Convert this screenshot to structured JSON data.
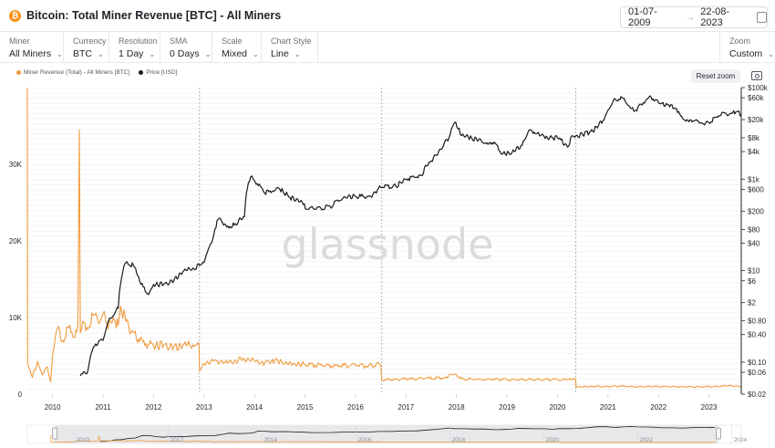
{
  "header": {
    "coin_symbol": "₿",
    "title": "Bitcoin: Total Miner Revenue [BTC] - All Miners",
    "date_from": "01-07-2009",
    "date_to": "22-08-2023",
    "arrow": "→"
  },
  "controls": [
    {
      "label": "Miner",
      "value": "All Miners"
    },
    {
      "label": "Currency",
      "value": "BTC"
    },
    {
      "label": "Resolution",
      "value": "1 Day"
    },
    {
      "label": "SMA",
      "value": "0 Days"
    },
    {
      "label": "Scale",
      "value": "Mixed"
    },
    {
      "label": "Chart Style",
      "value": "Line"
    }
  ],
  "zoom": {
    "label": "Zoom",
    "value": "Custom"
  },
  "toolbar": {
    "reset_zoom": "Reset zoom"
  },
  "watermark": "glassnode",
  "colors": {
    "revenue": "#f09a3e",
    "price": "#1a1a1a",
    "grid": "#eeeeee",
    "halving": "#9aa0a6"
  },
  "chart_data": {
    "type": "line",
    "title": "Bitcoin: Total Miner Revenue [BTC] - All Miners",
    "x_range": [
      2009.5,
      2023.64
    ],
    "x_ticks": [
      "2010",
      "2011",
      "2012",
      "2013",
      "2014",
      "2015",
      "2016",
      "2017",
      "2018",
      "2019",
      "2020",
      "2021",
      "2022",
      "2023"
    ],
    "halvings": [
      2012.91,
      2016.52,
      2020.36
    ],
    "grid": true,
    "legend_position": "top-left",
    "left_axis": {
      "scale": "linear",
      "range": [
        0,
        40000
      ],
      "ticks": [
        0,
        10000,
        20000,
        30000
      ],
      "tick_labels": [
        "0",
        "10K",
        "20K",
        "30K"
      ]
    },
    "right_axis": {
      "scale": "log",
      "range": [
        0.02,
        100000
      ],
      "ticks": [
        100000,
        60000,
        20000,
        8000,
        4000,
        1000,
        600,
        200,
        80,
        40,
        10,
        6,
        2,
        0.8,
        0.4,
        0.1,
        0.06,
        0.02
      ],
      "tick_labels": [
        "$100k",
        "$60k",
        "$20k",
        "$8k",
        "$4k",
        "$1k",
        "$600",
        "$200",
        "$80",
        "$40",
        "$10",
        "$6",
        "$2",
        "$0.80",
        "$0.40",
        "$0.10",
        "$0.06",
        "$0.02"
      ]
    },
    "series": [
      {
        "name": "Miner Revenue (Total) - All Miners [BTC]",
        "axis": "left",
        "points": [
          [
            2009.5,
            40000
          ],
          [
            2009.505,
            4000
          ],
          [
            2009.6,
            2200
          ],
          [
            2009.7,
            4300
          ],
          [
            2009.8,
            2500
          ],
          [
            2009.9,
            3500
          ],
          [
            2009.96,
            1600
          ],
          [
            2010.0,
            5200
          ],
          [
            2010.1,
            8500
          ],
          [
            2010.2,
            7000
          ],
          [
            2010.3,
            8800
          ],
          [
            2010.4,
            7500
          ],
          [
            2010.5,
            9000
          ],
          [
            2010.53,
            34500
          ],
          [
            2010.55,
            8000
          ],
          [
            2010.6,
            9500
          ],
          [
            2010.7,
            8500
          ],
          [
            2010.8,
            10300
          ],
          [
            2010.9,
            9500
          ],
          [
            2011.0,
            10500
          ],
          [
            2011.1,
            8500
          ],
          [
            2011.2,
            10000
          ],
          [
            2011.3,
            9000
          ],
          [
            2011.35,
            11500
          ],
          [
            2011.45,
            9500
          ],
          [
            2011.55,
            8000
          ],
          [
            2011.7,
            7200
          ],
          [
            2011.85,
            6600
          ],
          [
            2012.0,
            6300
          ],
          [
            2012.2,
            6400
          ],
          [
            2012.4,
            6100
          ],
          [
            2012.6,
            6500
          ],
          [
            2012.8,
            6200
          ],
          [
            2012.9,
            6400
          ],
          [
            2012.91,
            3000
          ],
          [
            2013.0,
            4000
          ],
          [
            2013.2,
            4400
          ],
          [
            2013.4,
            4100
          ],
          [
            2013.6,
            4400
          ],
          [
            2013.8,
            4600
          ],
          [
            2014.0,
            4300
          ],
          [
            2014.2,
            4000
          ],
          [
            2014.4,
            4400
          ],
          [
            2014.6,
            4000
          ],
          [
            2014.8,
            3900
          ],
          [
            2015.0,
            3900
          ],
          [
            2015.3,
            3800
          ],
          [
            2015.6,
            3700
          ],
          [
            2015.9,
            3750
          ],
          [
            2016.2,
            3700
          ],
          [
            2016.5,
            3800
          ],
          [
            2016.52,
            1850
          ],
          [
            2016.8,
            1950
          ],
          [
            2017.1,
            2000
          ],
          [
            2017.4,
            2100
          ],
          [
            2017.7,
            2100
          ],
          [
            2017.95,
            2600
          ],
          [
            2018.1,
            2000
          ],
          [
            2018.4,
            1900
          ],
          [
            2018.7,
            1950
          ],
          [
            2019.0,
            1900
          ],
          [
            2019.3,
            1900
          ],
          [
            2019.6,
            1950
          ],
          [
            2019.9,
            1900
          ],
          [
            2020.2,
            1900
          ],
          [
            2020.36,
            1950
          ],
          [
            2020.37,
            950
          ],
          [
            2020.7,
            1000
          ],
          [
            2021.0,
            1000
          ],
          [
            2021.3,
            1050
          ],
          [
            2021.6,
            950
          ],
          [
            2021.9,
            1000
          ],
          [
            2022.2,
            980
          ],
          [
            2022.5,
            950
          ],
          [
            2022.8,
            960
          ],
          [
            2023.1,
            980
          ],
          [
            2023.4,
            1100
          ],
          [
            2023.64,
            980
          ]
        ]
      },
      {
        "name": "Price [USD]",
        "axis": "right",
        "points": [
          [
            2010.55,
            0.05
          ],
          [
            2010.7,
            0.065
          ],
          [
            2010.85,
            0.25
          ],
          [
            2011.0,
            0.3
          ],
          [
            2011.15,
            0.9
          ],
          [
            2011.3,
            1.5
          ],
          [
            2011.45,
            15
          ],
          [
            2011.6,
            13
          ],
          [
            2011.75,
            5
          ],
          [
            2011.9,
            3
          ],
          [
            2012.0,
            5
          ],
          [
            2012.2,
            5
          ],
          [
            2012.4,
            6
          ],
          [
            2012.6,
            10
          ],
          [
            2012.8,
            11
          ],
          [
            2012.91,
            13
          ],
          [
            2013.0,
            15
          ],
          [
            2013.15,
            40
          ],
          [
            2013.3,
            140
          ],
          [
            2013.45,
            90
          ],
          [
            2013.6,
            100
          ],
          [
            2013.8,
            150
          ],
          [
            2013.92,
            1100
          ],
          [
            2014.05,
            800
          ],
          [
            2014.2,
            500
          ],
          [
            2014.5,
            600
          ],
          [
            2014.7,
            400
          ],
          [
            2014.9,
            320
          ],
          [
            2015.05,
            220
          ],
          [
            2015.5,
            250
          ],
          [
            2015.8,
            400
          ],
          [
            2016.0,
            420
          ],
          [
            2016.3,
            420
          ],
          [
            2016.5,
            660
          ],
          [
            2016.8,
            700
          ],
          [
            2017.0,
            1000
          ],
          [
            2017.3,
            1200
          ],
          [
            2017.5,
            2500
          ],
          [
            2017.7,
            4500
          ],
          [
            2017.85,
            8000
          ],
          [
            2017.96,
            17000
          ],
          [
            2018.1,
            9000
          ],
          [
            2018.3,
            8000
          ],
          [
            2018.5,
            6500
          ],
          [
            2018.75,
            6400
          ],
          [
            2018.9,
            3500
          ],
          [
            2019.1,
            3800
          ],
          [
            2019.3,
            5500
          ],
          [
            2019.45,
            12000
          ],
          [
            2019.6,
            10000
          ],
          [
            2019.8,
            8000
          ],
          [
            2020.0,
            8000
          ],
          [
            2020.2,
            5000
          ],
          [
            2020.3,
            8800
          ],
          [
            2020.5,
            9200
          ],
          [
            2020.7,
            11000
          ],
          [
            2020.9,
            19000
          ],
          [
            2021.0,
            32000
          ],
          [
            2021.15,
            55000
          ],
          [
            2021.3,
            58000
          ],
          [
            2021.45,
            35000
          ],
          [
            2021.55,
            32000
          ],
          [
            2021.7,
            47000
          ],
          [
            2021.85,
            63000
          ],
          [
            2022.0,
            46000
          ],
          [
            2022.2,
            42000
          ],
          [
            2022.4,
            30000
          ],
          [
            2022.5,
            20000
          ],
          [
            2022.75,
            20000
          ],
          [
            2022.87,
            16500
          ],
          [
            2023.0,
            17000
          ],
          [
            2023.15,
            23000
          ],
          [
            2023.3,
            28000
          ],
          [
            2023.45,
            27000
          ],
          [
            2023.55,
            30000
          ],
          [
            2023.64,
            26000
          ]
        ]
      }
    ]
  }
}
